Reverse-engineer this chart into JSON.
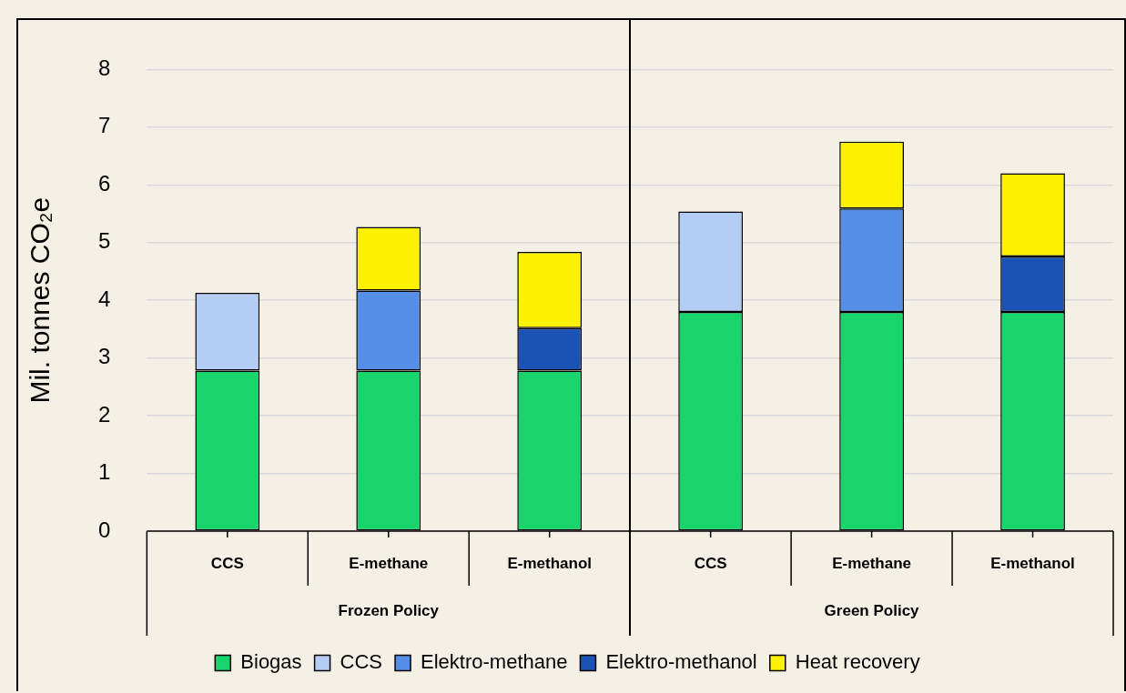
{
  "chart_data": {
    "type": "bar",
    "stacked": true,
    "ylabel": "Mil. tonnes CO₂e",
    "categories": [
      "CCS",
      "E-methane",
      "E-methanol",
      "CCS",
      "E-methane",
      "E-methanol"
    ],
    "annotations": [
      "Frozen Policy",
      "Green Policy"
    ],
    "series": [
      {
        "name": "Biogas",
        "color": "#17d46b",
        "values": [
          2.78,
          2.78,
          2.78,
          3.8,
          3.8,
          3.8
        ]
      },
      {
        "name": "CCS",
        "color": "#b4cdf5",
        "values": [
          1.35,
          null,
          null,
          1.74,
          null,
          null
        ]
      },
      {
        "name": "Elektro-methane",
        "color": "#558ee6",
        "values": [
          null,
          1.39,
          null,
          null,
          1.79,
          null
        ]
      },
      {
        "name": "Elektro-methanol",
        "color": "#1b52b5",
        "values": [
          null,
          null,
          0.74,
          null,
          null,
          0.96
        ]
      },
      {
        "name": "Heat recovery",
        "color": "#fcf003",
        "values": [
          null,
          1.1,
          1.32,
          null,
          1.16,
          1.44
        ]
      }
    ],
    "ylim": [
      0,
      8
    ],
    "yticks": [
      0,
      1,
      2,
      3,
      4,
      5,
      6,
      7,
      8
    ],
    "grid": "y",
    "legend": "bottom"
  }
}
